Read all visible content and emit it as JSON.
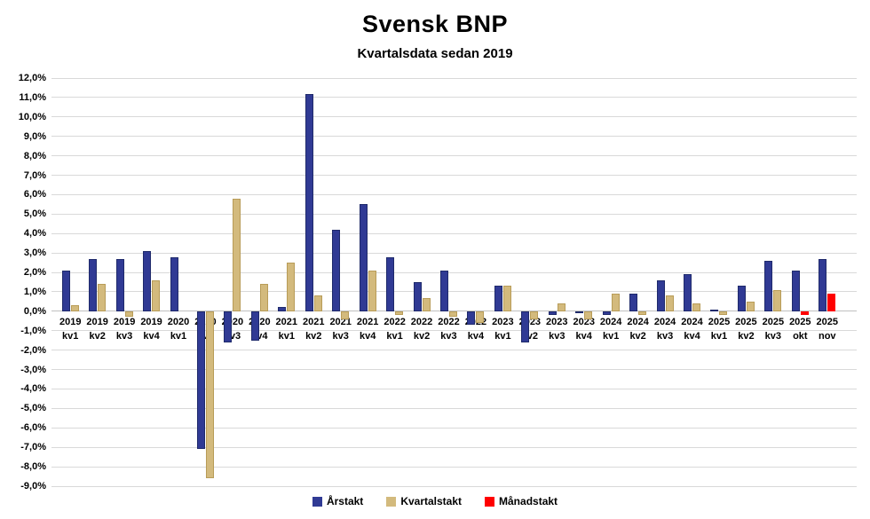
{
  "page": {
    "background": "#ffffff"
  },
  "chart_data": {
    "type": "bar",
    "title": "Svensk BNP",
    "subtitle": "Kvartalsdata sedan 2019",
    "grid": true,
    "legend_position": "bottom",
    "ylim": [
      -9,
      12
    ],
    "ytick_step": 1,
    "ytick_labels": [
      "12,0%",
      "11,0%",
      "10,0%",
      "9,0%",
      "8,0%",
      "7,0%",
      "6,0%",
      "5,0%",
      "4,0%",
      "3,0%",
      "2,0%",
      "1,0%",
      "0,0%",
      "-1,0%",
      "-2,0%",
      "-3,0%",
      "-4,0%",
      "-5,0%",
      "-6,0%",
      "-7,0%",
      "-8,0%",
      "-9,0%"
    ],
    "categories": [
      [
        "2019",
        "kv1"
      ],
      [
        "2019",
        "kv2"
      ],
      [
        "2019",
        "kv3"
      ],
      [
        "2019",
        "kv4"
      ],
      [
        "2020",
        "kv1"
      ],
      [
        "2020",
        "kv2"
      ],
      [
        "2020",
        "kv3"
      ],
      [
        "2020",
        "kv4"
      ],
      [
        "2021",
        "kv1"
      ],
      [
        "2021",
        "kv2"
      ],
      [
        "2021",
        "kv3"
      ],
      [
        "2021",
        "kv4"
      ],
      [
        "2022",
        "kv1"
      ],
      [
        "2022",
        "kv2"
      ],
      [
        "2022",
        "kv3"
      ],
      [
        "2022",
        "kv4"
      ],
      [
        "2023",
        "kv1"
      ],
      [
        "2023",
        "kv2"
      ],
      [
        "2023",
        "kv3"
      ],
      [
        "2023",
        "kv4"
      ],
      [
        "2024",
        "kv1"
      ],
      [
        "2024",
        "kv2"
      ],
      [
        "2024",
        "kv3"
      ],
      [
        "2024",
        "kv4"
      ],
      [
        "2025",
        "kv1"
      ],
      [
        "2025",
        "kv2"
      ],
      [
        "2025",
        "kv3"
      ],
      [
        "2025",
        "okt"
      ],
      [
        "2025",
        "nov"
      ]
    ],
    "series": [
      {
        "name": "Årstakt",
        "color": "#303a94",
        "values": [
          2.1,
          2.7,
          2.7,
          3.1,
          2.8,
          -7.1,
          -1.6,
          -1.5,
          0.2,
          11.2,
          4.2,
          5.5,
          2.8,
          1.5,
          2.1,
          -0.7,
          1.3,
          -1.6,
          -0.2,
          -0.1,
          -0.2,
          0.9,
          1.6,
          1.9,
          0.1,
          1.3,
          2.6,
          2.1,
          2.7
        ]
      },
      {
        "name": "Kvartalstakt",
        "color": "#d3ba7d",
        "values": [
          0.3,
          1.4,
          -0.3,
          1.6,
          0.0,
          -8.6,
          5.8,
          1.4,
          2.5,
          0.8,
          -0.4,
          2.1,
          -0.2,
          0.7,
          -0.3,
          -0.6,
          1.3,
          -0.4,
          0.4,
          -0.4,
          0.9,
          -0.2,
          0.8,
          0.4,
          -0.2,
          0.5,
          1.1,
          null,
          null
        ]
      },
      {
        "name": "Månadstakt",
        "color": "#ff0000",
        "values": [
          null,
          null,
          null,
          null,
          null,
          null,
          null,
          null,
          null,
          null,
          null,
          null,
          null,
          null,
          null,
          null,
          null,
          null,
          null,
          null,
          null,
          null,
          null,
          null,
          null,
          null,
          null,
          -0.2,
          0.9
        ]
      }
    ],
    "colors": {
      "gridline": "#d9d9d9",
      "zero_axis": "#bfbfbf",
      "text": "#000000"
    }
  }
}
